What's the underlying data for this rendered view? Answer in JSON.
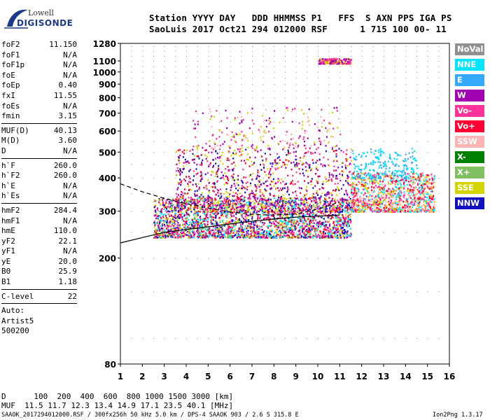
{
  "logo": {
    "line1": "Lowell",
    "line2": "DIGISONDE"
  },
  "header": {
    "labels": "Station YYYY DAY   DDD HHMMSS P1   FFS  S AXN PPS IGA PS",
    "values": "SaoLuis 2017 Oct21 294 012000 RSF      1 715 100 00- 11"
  },
  "params": {
    "group1": [
      {
        "name": "foF2",
        "value": "11.150"
      },
      {
        "name": "foF1",
        "value": "N/A"
      },
      {
        "name": "foF1p",
        "value": "N/A"
      },
      {
        "name": "foE",
        "value": "N/A"
      },
      {
        "name": "foEp",
        "value": "0.40"
      },
      {
        "name": "fxI",
        "value": "11.55"
      },
      {
        "name": "foEs",
        "value": "N/A"
      },
      {
        "name": "fmin",
        "value": "3.15"
      }
    ],
    "group2": [
      {
        "name": "MUF(D)",
        "value": "40.13"
      },
      {
        "name": "M(D)",
        "value": "3.60"
      },
      {
        "name": "D",
        "value": "N/A"
      }
    ],
    "group3": [
      {
        "name": "h`F",
        "value": "260.0"
      },
      {
        "name": "h`F2",
        "value": "260.0"
      },
      {
        "name": "h`E",
        "value": "N/A"
      },
      {
        "name": "h`Es",
        "value": "N/A"
      }
    ],
    "group4": [
      {
        "name": "hmF2",
        "value": "284.4"
      },
      {
        "name": "hmF1",
        "value": "N/A"
      },
      {
        "name": "hmE",
        "value": "110.0"
      },
      {
        "name": "yF2",
        "value": "22.1"
      },
      {
        "name": "yF1",
        "value": "N/A"
      },
      {
        "name": "yE",
        "value": "20.0"
      },
      {
        "name": "B0",
        "value": "25.9"
      },
      {
        "name": "B1",
        "value": "1.18"
      }
    ],
    "group5": [
      {
        "name": "C-level",
        "value": "22"
      }
    ],
    "auto": [
      "Auto:",
      "Artist5",
      "500200"
    ]
  },
  "legend": [
    {
      "label": "NoVal",
      "color": "#909090"
    },
    {
      "label": "NNE",
      "color": "#00e5ff"
    },
    {
      "label": "E",
      "color": "#33aaff"
    },
    {
      "label": "W",
      "color": "#a000b0"
    },
    {
      "label": "Vo-",
      "color": "#ff3399"
    },
    {
      "label": "Vo+",
      "color": "#ff0033"
    },
    {
      "label": "SSW",
      "color": "#ffb3b3"
    },
    {
      "label": "X-",
      "color": "#008000"
    },
    {
      "label": "X+",
      "color": "#80c060"
    },
    {
      "label": "SSE",
      "color": "#d4d400"
    },
    {
      "label": "NNW",
      "color": "#1010c0"
    }
  ],
  "chart_data": {
    "type": "scatter",
    "x_range": [
      1,
      16
    ],
    "y_range": [
      80,
      1280
    ],
    "y_scale": "log",
    "x_ticks": [
      1,
      2,
      3,
      4,
      5,
      6,
      7,
      8,
      9,
      10,
      11,
      12,
      13,
      14,
      15,
      16
    ],
    "y_ticks": [
      80,
      200,
      300,
      400,
      500,
      600,
      700,
      800,
      900,
      1000,
      1100,
      1280
    ],
    "grid": true,
    "clusters": [
      {
        "name": "F-trace main",
        "x_from": 2.5,
        "x_to": 11.5,
        "y_from": 240,
        "y_to": 340,
        "density": "high",
        "colors": [
          "Vo+",
          "Vo-",
          "W",
          "SSE",
          "X+",
          "NNW",
          "NNE"
        ]
      },
      {
        "name": "F-trace spread",
        "x_from": 3.5,
        "x_to": 11.5,
        "y_from": 300,
        "y_to": 520,
        "density": "medium",
        "colors": [
          "W",
          "Vo+",
          "Vo-",
          "NNW",
          "SSE"
        ]
      },
      {
        "name": "post foF2 spread",
        "x_from": 11.5,
        "x_to": 15.3,
        "y_from": 300,
        "y_to": 420,
        "density": "medium",
        "colors": [
          "Vo+",
          "SSW",
          "Vo-",
          "SSE",
          "NNE"
        ]
      },
      {
        "name": "NNE high",
        "x_from": 11.5,
        "x_to": 14.5,
        "y_from": 400,
        "y_to": 520,
        "density": "low",
        "colors": [
          "NNE",
          "E"
        ]
      },
      {
        "name": "second hop",
        "x_from": 4.2,
        "x_to": 11.0,
        "y_from": 520,
        "y_to": 740,
        "density": "low",
        "colors": [
          "SSE",
          "Vo-",
          "SSW",
          "W"
        ]
      },
      {
        "name": "third hop",
        "x_from": 10.0,
        "x_to": 11.5,
        "y_from": 1080,
        "y_to": 1130,
        "density": "low",
        "colors": [
          "W",
          "SSE",
          "Vo-"
        ]
      }
    ],
    "model_curve_solid": [
      [
        1,
        228
      ],
      [
        3,
        250
      ],
      [
        5,
        262
      ],
      [
        7,
        275
      ],
      [
        9,
        285
      ],
      [
        11,
        290
      ]
    ],
    "model_curve_dashed": [
      [
        1,
        380
      ],
      [
        2,
        355
      ],
      [
        3,
        335
      ],
      [
        4,
        320
      ],
      [
        5,
        308
      ],
      [
        6,
        298
      ],
      [
        7,
        292
      ],
      [
        8,
        290
      ],
      [
        9,
        293
      ],
      [
        10,
        305
      ],
      [
        11,
        325
      ]
    ]
  },
  "footer": {
    "d_row": "D      100  200  400  600  800 1000 1500 3000 [km]",
    "muf_row": "MUF  11.5 11.7 12.3 13.4 14.9 17.1 23.5 40.1 [MHz]",
    "file_line": "SAAOK_2017294012000.RSF / 300fx256h 50 kHz 5.0 km / DPS-4 SAAOK 903 / 2.6 S 315.8 E",
    "version": "Ion2Png 1.3.17"
  }
}
